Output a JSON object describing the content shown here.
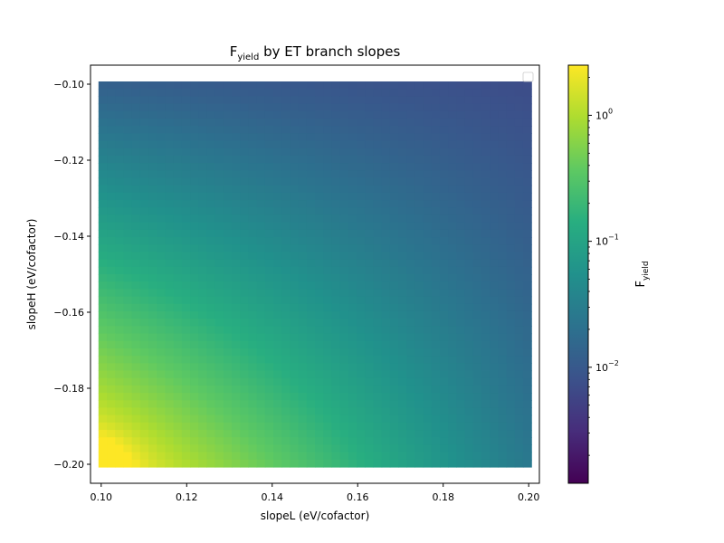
{
  "chart_data": {
    "type": "heatmap",
    "title_main": "F",
    "title_sub": "yield",
    "title_rest": " by ET branch slopes",
    "xlabel": "slopeL (eV/cofactor)",
    "ylabel": "slopeH (eV/cofactor)",
    "xlim": [
      0.0975,
      0.2025
    ],
    "ylim": [
      -0.205,
      -0.095
    ],
    "x_range": [
      0.1,
      0.2
    ],
    "y_range": [
      -0.2,
      -0.1
    ],
    "x_ticks": [
      {
        "value": 0.1,
        "label": "0.10"
      },
      {
        "value": 0.12,
        "label": "0.12"
      },
      {
        "value": 0.14,
        "label": "0.14"
      },
      {
        "value": 0.16,
        "label": "0.16"
      },
      {
        "value": 0.18,
        "label": "0.18"
      },
      {
        "value": 0.2,
        "label": "0.20"
      }
    ],
    "y_ticks": [
      {
        "value": -0.1,
        "label": "−0.10"
      },
      {
        "value": -0.12,
        "label": "−0.12"
      },
      {
        "value": -0.14,
        "label": "−0.14"
      },
      {
        "value": -0.16,
        "label": "−0.16"
      },
      {
        "value": -0.18,
        "label": "−0.18"
      },
      {
        "value": -0.2,
        "label": "−0.20"
      }
    ],
    "colorbar": {
      "scale": "log",
      "range": [
        0.0012,
        2.5
      ],
      "label_main": "F",
      "label_sub": "yield",
      "ticks": [
        {
          "value": 0.01,
          "base": "10",
          "exp": "−2"
        },
        {
          "value": 0.1,
          "base": "10",
          "exp": "−1"
        },
        {
          "value": 1,
          "base": "10",
          "exp": "0"
        }
      ],
      "colormap": "viridis"
    },
    "field": {
      "corner_values": {
        "x0.10_y-0.20": 2.5,
        "x0.20_y-0.20": 0.025,
        "x0.10_y-0.10": 0.012,
        "x0.20_y-0.10": 0.007
      }
    },
    "legend": {
      "placement": "upper-right",
      "entries": []
    },
    "grid": false
  }
}
